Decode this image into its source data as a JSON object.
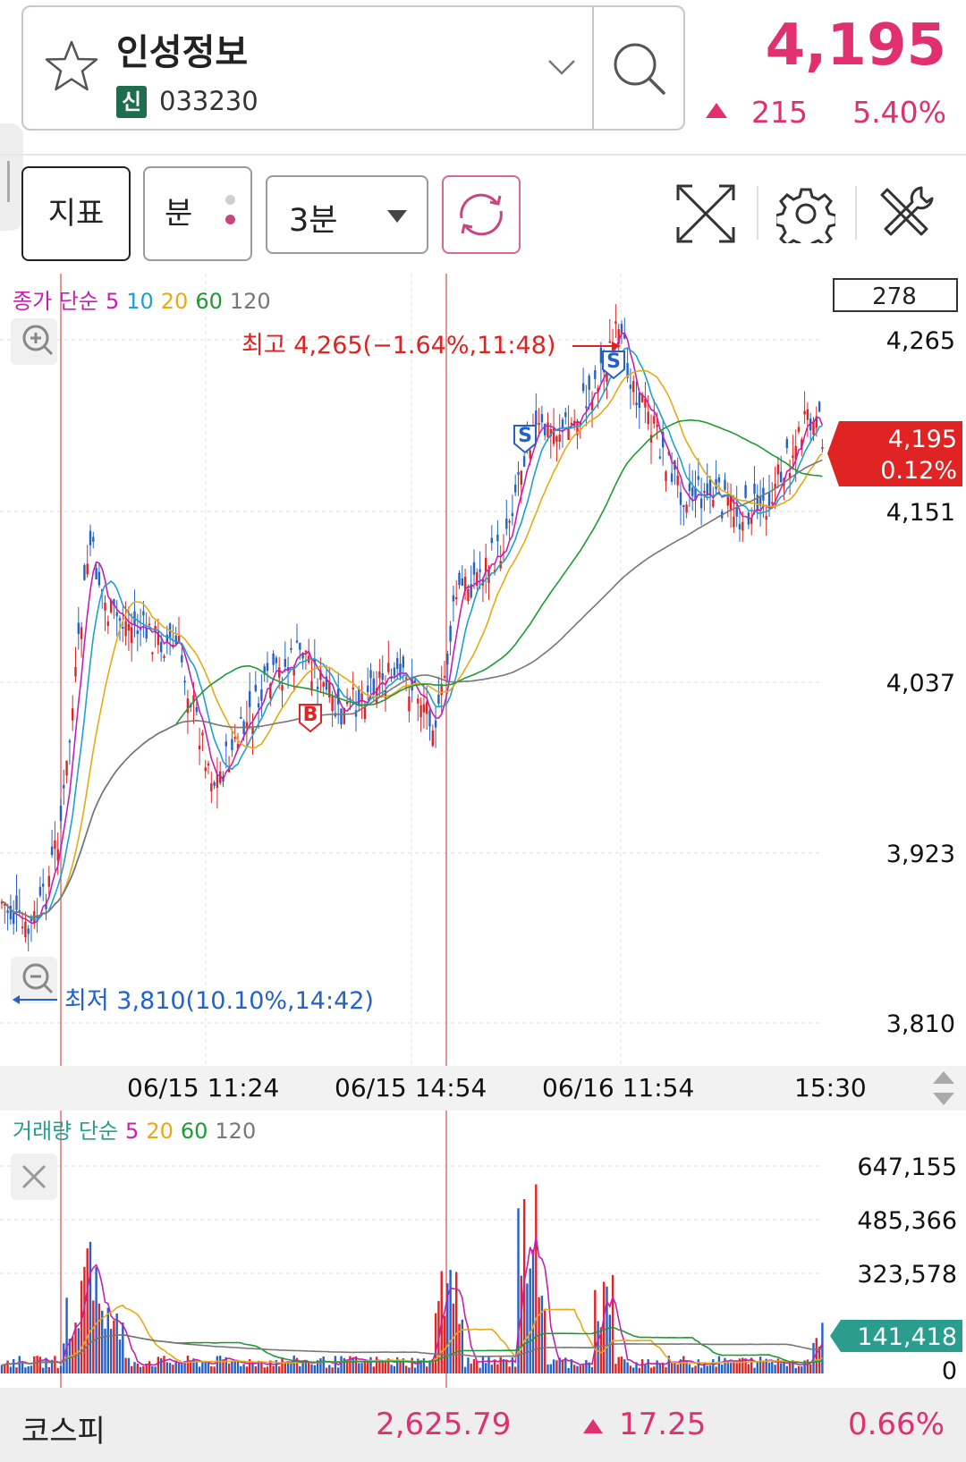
{
  "header": {
    "stock_name": "인성정보",
    "market_badge": "신",
    "stock_code": "033230",
    "price": "4,195",
    "change": "215",
    "change_pct": "5.40%",
    "up_color": "#e0306f"
  },
  "toolbar": {
    "indicator_label": "지표",
    "minute_label": "분",
    "interval_value": "3분",
    "icons": [
      "star-icon",
      "chevron-down-icon",
      "search-icon",
      "refresh-icon",
      "expand-icon",
      "gear-icon",
      "tools-icon"
    ]
  },
  "chart": {
    "legend_prefix": "종가 단순",
    "legend_periods": [
      {
        "label": "5",
        "color": "#c81eb4"
      },
      {
        "label": "10",
        "color": "#1ea0d2"
      },
      {
        "label": "20",
        "color": "#e6aa14"
      },
      {
        "label": "60",
        "color": "#1e9b32"
      },
      {
        "label": "120",
        "color": "#777777"
      }
    ],
    "count_box": "278",
    "high_annotation": "최고 4,265(−1.64%,11:48)",
    "low_annotation": "최저 3,810(10.10%,14:42)",
    "current_price": "4,195",
    "current_pct": "0.12%",
    "y_labels": [
      "4,265",
      "4,151",
      "4,037",
      "3,923",
      "3,810"
    ],
    "x_labels": [
      "06/15 11:24",
      "06/15 14:54",
      "06/16 11:54",
      "15:30"
    ],
    "signals": [
      "S",
      "S",
      "B"
    ]
  },
  "volume": {
    "legend_prefix": "거래량 단순",
    "legend_periods": [
      {
        "label": "5",
        "color": "#c81eb4"
      },
      {
        "label": "20",
        "color": "#e6aa14"
      },
      {
        "label": "60",
        "color": "#1e9b32"
      },
      {
        "label": "120",
        "color": "#777777"
      }
    ],
    "y_labels": [
      "647,155",
      "485,366",
      "323,578",
      "0"
    ],
    "current_volume": "141,418"
  },
  "bottom": {
    "index_name": "코스피",
    "index_value": "2,625.79",
    "index_change": "17.25",
    "index_pct": "0.66%"
  }
}
